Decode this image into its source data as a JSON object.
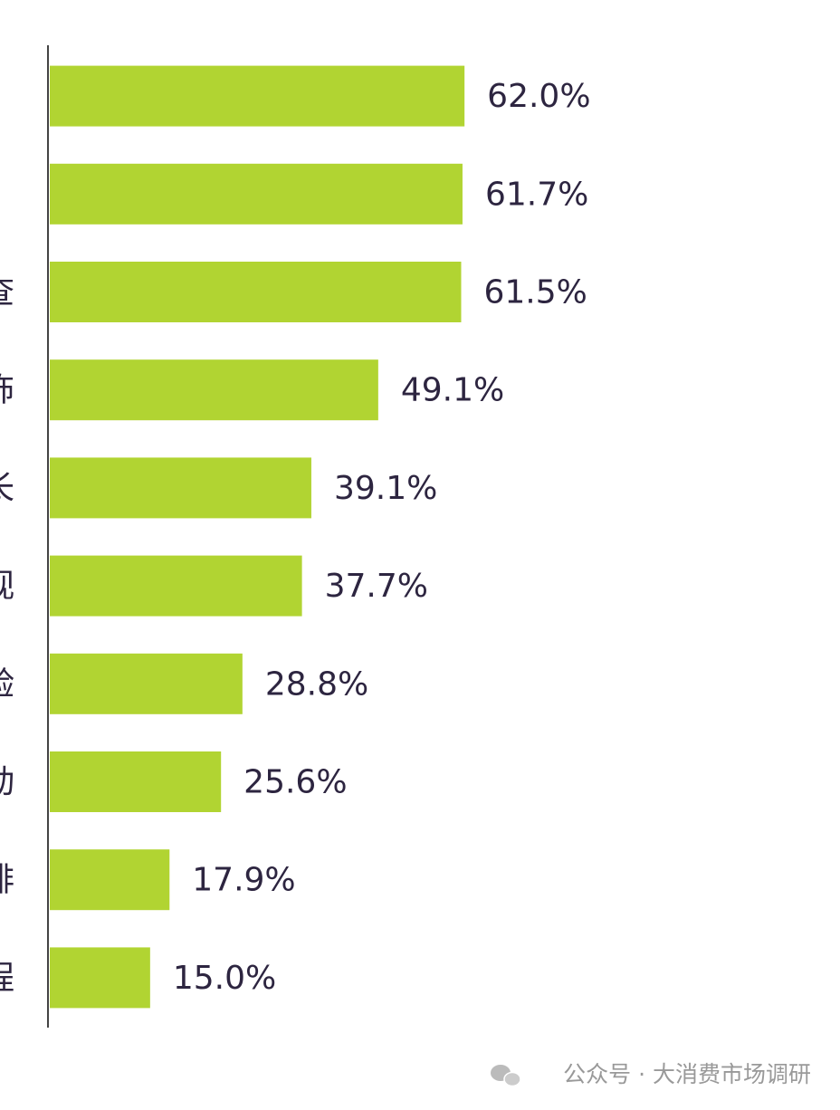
{
  "chart_data": {
    "type": "barh",
    "categories": [
      null,
      null,
      "查",
      "饰",
      "长",
      "视",
      "验",
      "动",
      "排",
      "程"
    ],
    "values": [
      62.0,
      61.7,
      61.5,
      49.1,
      39.1,
      37.7,
      28.8,
      25.6,
      17.9,
      15.0
    ],
    "value_labels": [
      "62.0%",
      "61.7%",
      "61.5%",
      "49.1%",
      "39.1%",
      "37.7%",
      "28.8%",
      "25.6%",
      "17.9%",
      "15.0%"
    ],
    "color": "#b1d432",
    "xlim": [
      0,
      100
    ]
  },
  "watermark": "公众号 · 大消费市场调研"
}
